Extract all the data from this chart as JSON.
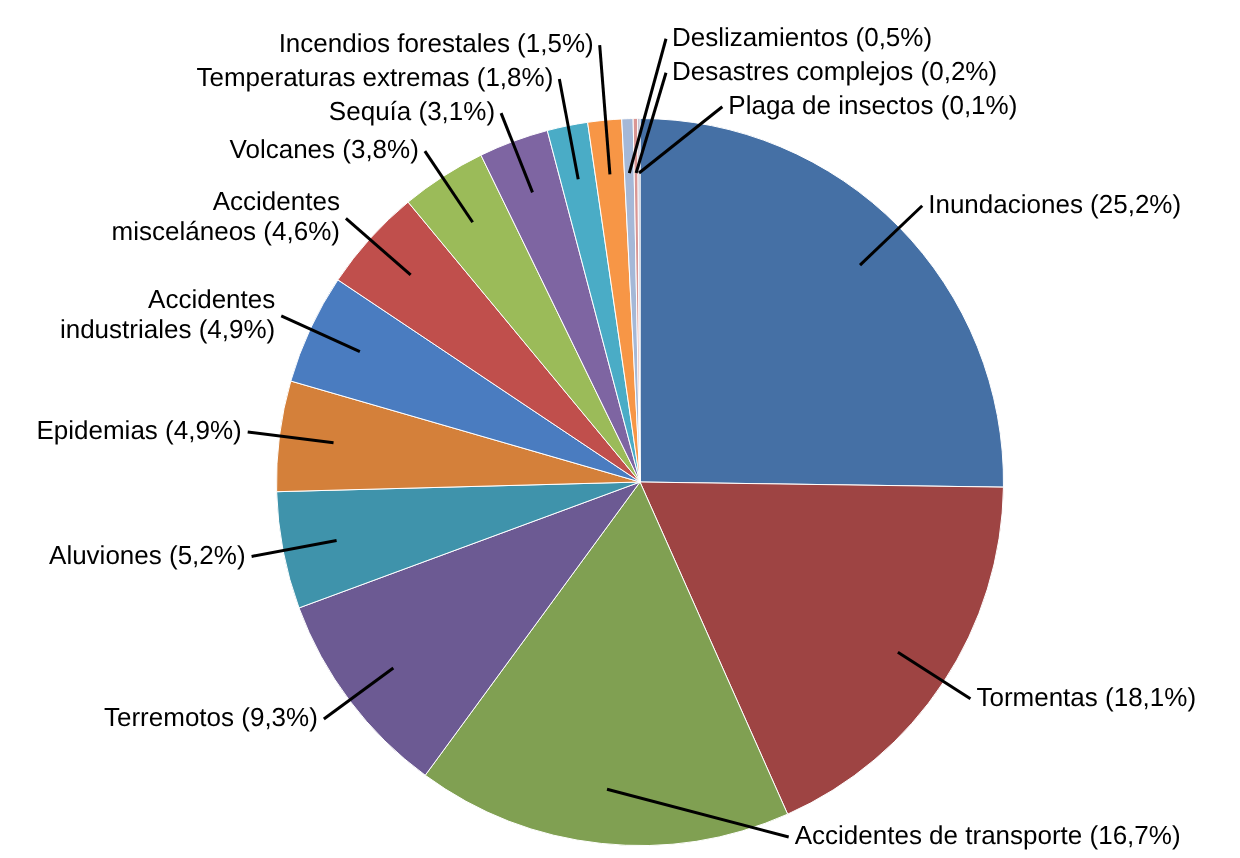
{
  "chart_data": {
    "type": "pie",
    "categories": [
      "Inundaciones",
      "Tormentas",
      "Accidentes de transporte",
      "Terremotos",
      "Aluviones",
      "Epidemias",
      "Accidentes industriales",
      "Accidentes misceláneos",
      "Volcanes",
      "Sequía",
      "Temperaturas extremas",
      "Incendios forestales",
      "Deslizamientos",
      "Desastres complejos",
      "Plaga de insectos"
    ],
    "values": [
      25.2,
      18.1,
      16.7,
      9.3,
      5.2,
      4.9,
      4.9,
      4.6,
      3.8,
      3.1,
      1.8,
      1.5,
      0.5,
      0.2,
      0.1
    ],
    "value_labels": [
      "(25,2%)",
      "(18,1%)",
      "(16,7%)",
      "(9,3%)",
      "(5,2%)",
      "(4,9%)",
      "(4,9%)",
      "(4,6%)",
      "(3,8%)",
      "(3,1%)",
      "(1,8%)",
      "(1,5%)",
      "(0,5%)",
      "(0,2%)",
      "(0,1%)"
    ],
    "colors": [
      "#4570a5",
      "#9e4443",
      "#80a052",
      "#6c5a93",
      "#3f93ab",
      "#d4803a",
      "#4a7cc0",
      "#c04f4c",
      "#9bbb59",
      "#7e65a2",
      "#4aacc6",
      "#f79646",
      "#a5b8d7",
      "#d99694",
      "#b3b3c9"
    ],
    "legend": false
  }
}
